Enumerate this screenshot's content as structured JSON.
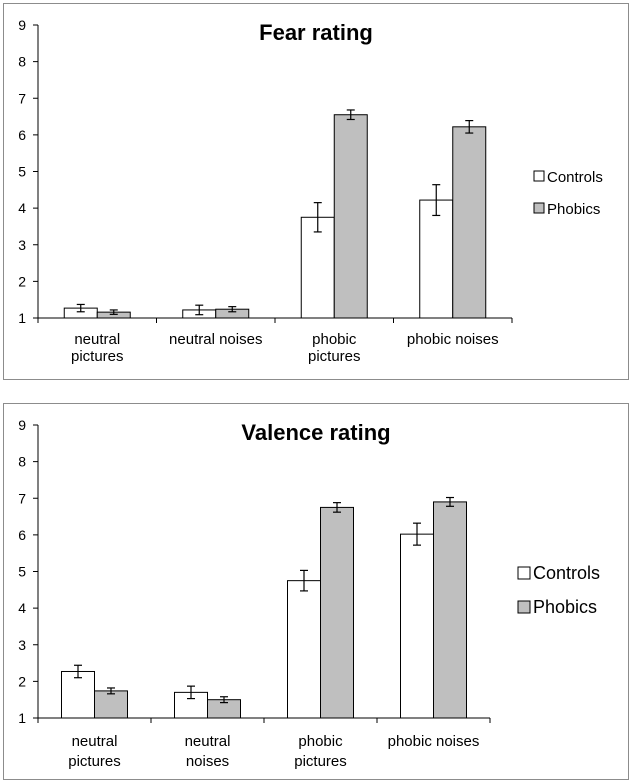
{
  "colors": {
    "controls": "#ffffff",
    "phobics": "#bfbfbf",
    "axis": "#000000"
  },
  "chart_data": [
    {
      "type": "bar",
      "title": "Fear rating",
      "categories": [
        [
          "neutral",
          "pictures"
        ],
        [
          "neutral noises"
        ],
        [
          "phobic",
          "pictures"
        ],
        [
          "phobic noises"
        ]
      ],
      "series": [
        {
          "name": "Controls",
          "values": [
            1.27,
            1.22,
            3.75,
            4.22
          ],
          "errors": [
            0.1,
            0.13,
            0.4,
            0.42
          ]
        },
        {
          "name": "Phobics",
          "values": [
            1.16,
            1.24,
            6.55,
            6.22
          ],
          "errors": [
            0.06,
            0.07,
            0.13,
            0.17
          ]
        }
      ],
      "yticks": [
        1,
        2,
        3,
        4,
        5,
        6,
        7,
        8,
        9
      ],
      "ylim": [
        1,
        9
      ],
      "xlabel": "",
      "ylabel": "",
      "legend": "right"
    },
    {
      "type": "bar",
      "title": "Valence rating",
      "categories": [
        [
          "neutral",
          "pictures"
        ],
        [
          "neutral",
          "noises"
        ],
        [
          "phobic",
          "pictures"
        ],
        [
          "phobic noises"
        ]
      ],
      "series": [
        {
          "name": "Controls",
          "values": [
            2.27,
            1.7,
            4.75,
            6.02
          ],
          "errors": [
            0.17,
            0.17,
            0.28,
            0.3
          ]
        },
        {
          "name": "Phobics",
          "values": [
            1.74,
            1.5,
            6.75,
            6.9
          ],
          "errors": [
            0.08,
            0.08,
            0.13,
            0.12
          ]
        }
      ],
      "yticks": [
        1,
        2,
        3,
        4,
        5,
        6,
        7,
        8,
        9
      ],
      "ylim": [
        1,
        9
      ],
      "xlabel": "",
      "ylabel": "",
      "legend": "right"
    }
  ]
}
